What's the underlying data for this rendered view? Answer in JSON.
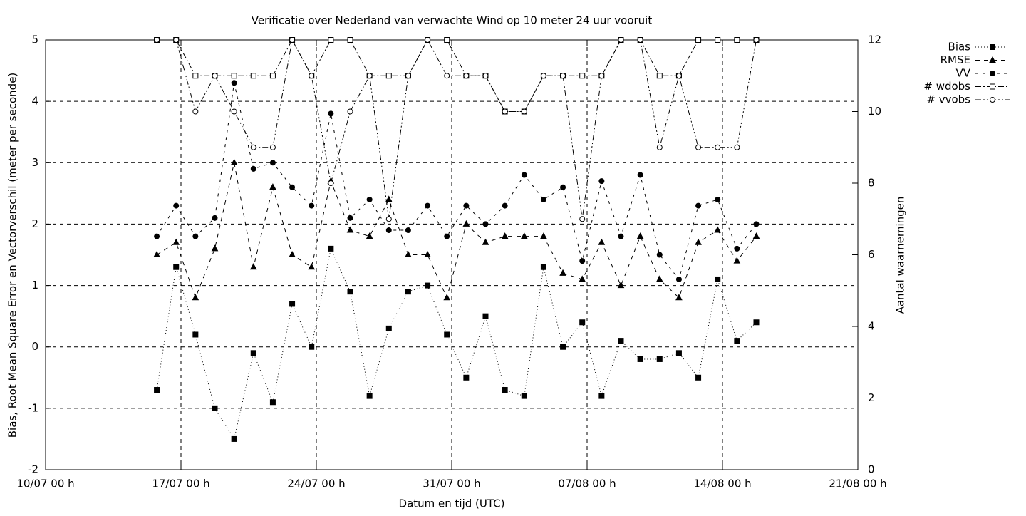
{
  "chart_data": {
    "type": "line",
    "title": "Verificatie over Nederland van verwachte Wind op 10 meter 24 uur vooruit",
    "xlabel": "Datum en tijd (UTC)",
    "ylabel": "Bias, Root Mean Square Error en Vectorverschil (meter per seconde)",
    "y2label": "Aantal waarnemingen",
    "x": [
      "15/07 18 h",
      "16/07 18 h",
      "17/07 18 h",
      "18/07 18 h",
      "19/07 18 h",
      "20/07 18 h",
      "21/07 18 h",
      "22/07 18 h",
      "23/07 18 h",
      "24/07 18 h",
      "25/07 18 h",
      "26/07 18 h",
      "27/07 18 h",
      "28/07 18 h",
      "29/07 18 h",
      "30/07 18 h",
      "31/07 18 h",
      "01/08 18 h",
      "02/08 18 h",
      "03/08 18 h",
      "04/08 18 h",
      "05/08 18 h",
      "06/08 18 h",
      "07/08 18 h",
      "08/08 18 h",
      "09/08 18 h",
      "10/08 18 h",
      "11/08 18 h",
      "12/08 18 h",
      "13/08 18 h",
      "14/08 18 h",
      "15/08 18 h"
    ],
    "xlim": [
      "10/07 00 h",
      "21/08 00 h"
    ],
    "xticks": [
      "10/07 00 h",
      "17/07 00 h",
      "24/07 00 h",
      "31/07 00 h",
      "07/08 00 h",
      "14/08 00 h",
      "21/08 00 h"
    ],
    "ylim": [
      -2,
      5
    ],
    "yticks": [
      -2,
      -1,
      0,
      1,
      2,
      3,
      4,
      5
    ],
    "y2lim": [
      0,
      12
    ],
    "y2ticks": [
      0,
      2,
      4,
      6,
      8,
      10,
      12
    ],
    "grid": true,
    "legend": "outside-top-right",
    "series": [
      {
        "name": "Bias",
        "color": "#000000",
        "dash": "1,3",
        "marker": "filled-square",
        "values": [
          -0.7,
          1.3,
          0.2,
          -1.0,
          -1.5,
          -0.1,
          -0.9,
          0.7,
          0.0,
          1.6,
          0.9,
          -0.8,
          0.3,
          0.9,
          1.0,
          0.2,
          -0.5,
          0.5,
          -0.7,
          -0.8,
          1.3,
          0.0,
          0.4,
          -0.8,
          0.1,
          -0.2,
          -0.2,
          -0.1,
          -0.5,
          1.1,
          0.1,
          0.4
        ]
      },
      {
        "name": "RMSE",
        "color": "#000000",
        "dash": "6,6",
        "marker": "filled-triangle",
        "values": [
          1.5,
          1.7,
          0.8,
          1.6,
          3.0,
          1.3,
          2.6,
          1.5,
          1.3,
          2.7,
          1.9,
          1.8,
          2.4,
          1.5,
          1.5,
          0.8,
          2.0,
          1.7,
          1.8,
          1.8,
          1.8,
          1.2,
          1.1,
          1.7,
          1.0,
          1.8,
          1.1,
          0.8,
          1.7,
          1.9,
          1.4,
          1.8
        ]
      },
      {
        "name": "VV",
        "color": "#000000",
        "dash": "4,6",
        "marker": "filled-circle",
        "values": [
          1.8,
          2.3,
          1.8,
          2.1,
          4.3,
          2.9,
          3.0,
          2.6,
          2.3,
          3.8,
          2.1,
          2.4,
          1.9,
          1.9,
          2.3,
          1.8,
          2.3,
          2.0,
          2.3,
          2.8,
          2.4,
          2.6,
          1.4,
          2.7,
          1.8,
          2.8,
          1.5,
          1.1,
          2.3,
          2.4,
          1.6,
          2.0
        ]
      },
      {
        "name": "# wdobs",
        "color": "#000000",
        "dash": "8,3,2,3",
        "marker": "open-square",
        "axis": "y2",
        "values": [
          12,
          12,
          11,
          11,
          11,
          11,
          11,
          12,
          11,
          12,
          12,
          11,
          11,
          11,
          12,
          12,
          11,
          11,
          10,
          10,
          11,
          11,
          11,
          11,
          12,
          12,
          11,
          11,
          12,
          12,
          12,
          12
        ]
      },
      {
        "name": "# vvobs",
        "color": "#000000",
        "dash": "8,3,2,3,2,3",
        "marker": "open-circle",
        "axis": "y2",
        "values": [
          12,
          12,
          10,
          11,
          10,
          9,
          9,
          12,
          11,
          8,
          10,
          11,
          7,
          11,
          12,
          11,
          11,
          11,
          10,
          10,
          11,
          11,
          7,
          11,
          12,
          12,
          9,
          11,
          9,
          9,
          9,
          12
        ]
      }
    ]
  }
}
